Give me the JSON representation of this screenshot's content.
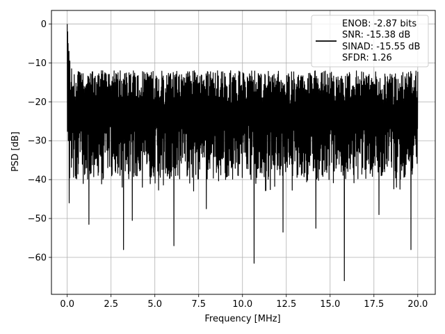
{
  "chart_data": {
    "type": "line",
    "xlabel": "Frequency [MHz]",
    "ylabel": "PSD [dB]",
    "xlim": [
      -0.9,
      21.0
    ],
    "ylim": [
      -69.5,
      3.5
    ],
    "xticks": [
      0.0,
      2.5,
      5.0,
      7.5,
      10.0,
      12.5,
      15.0,
      17.5,
      20.0
    ],
    "xtick_labels": [
      "0.0",
      "2.5",
      "5.0",
      "7.5",
      "10.0",
      "12.5",
      "15.0",
      "17.5",
      "20.0"
    ],
    "yticks": [
      0,
      -10,
      -20,
      -30,
      -40,
      -50,
      -60
    ],
    "ytick_labels": [
      "0",
      "−10",
      "−20",
      "−30",
      "−40",
      "−50",
      "−60"
    ],
    "grid": true,
    "legend_position": "top-right",
    "series": [
      {
        "name": "ENOB: -2.87 bits\nSNR: -15.38 dB\nSINAD: -15.55 dB\nSFDR: 1.26",
        "color": "#000000",
        "x_range": [
          0.0,
          20.0
        ],
        "noise_band": {
          "upper_mean": -16,
          "lower_mean": -33,
          "upper_range": [
            -12,
            -21
          ],
          "lower_range": [
            -26,
            -40
          ]
        },
        "peaks": [
          {
            "x": 0.0,
            "y": 0.0
          },
          {
            "x": 0.02,
            "y": -2.0
          },
          {
            "x": 0.06,
            "y": -5.0
          },
          {
            "x": 0.1,
            "y": -7.0
          },
          {
            "x": 0.15,
            "y": -9.5
          },
          {
            "x": 0.25,
            "y": -11.5
          },
          {
            "x": 0.4,
            "y": -13.0
          }
        ],
        "dips": [
          {
            "x": 0.12,
            "y": -46.0
          },
          {
            "x": 1.25,
            "y": -51.5
          },
          {
            "x": 3.2,
            "y": -58.0
          },
          {
            "x": 3.7,
            "y": -50.5
          },
          {
            "x": 6.1,
            "y": -57.0
          },
          {
            "x": 7.95,
            "y": -47.5
          },
          {
            "x": 10.65,
            "y": -61.5
          },
          {
            "x": 12.3,
            "y": -53.5
          },
          {
            "x": 14.2,
            "y": -52.5
          },
          {
            "x": 15.8,
            "y": -66.0
          },
          {
            "x": 17.8,
            "y": -49.0
          },
          {
            "x": 19.6,
            "y": -58.0
          }
        ]
      }
    ]
  },
  "legend": {
    "line1": "ENOB: -2.87 bits",
    "line2": "SNR: -15.38 dB",
    "line3": "SINAD: -15.55 dB",
    "line4": "SFDR: 1.26"
  }
}
